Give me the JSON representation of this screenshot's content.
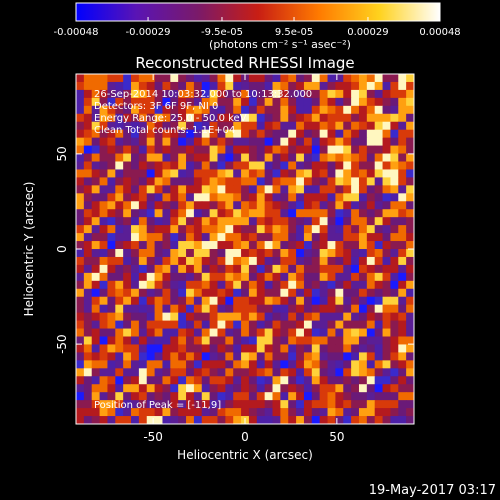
{
  "colorbar": {
    "ticks": [
      "-0.00048",
      "-0.00029",
      "-9.5e-05",
      "9.5e-05",
      "0.00029",
      "0.00048"
    ],
    "tick_values": [
      -0.00048,
      -0.00029,
      -9.5e-05,
      9.5e-05,
      0.00029,
      0.00048
    ],
    "unit_label": "(photons cm⁻² s⁻¹ asec⁻²)",
    "range": [
      -0.00048,
      0.00048
    ],
    "colormap": [
      "#0000ff",
      "#5a14b4",
      "#7a1a6a",
      "#c81e14",
      "#ff7a00",
      "#ffd21e",
      "#ffffff"
    ]
  },
  "chart_data": {
    "type": "heatmap",
    "title": "Reconstructed RHESSI Image",
    "xlabel": "Heliocentric X (arcsec)",
    "ylabel": "Heliocentric Y (arcsec)",
    "x_ticks": [
      "-50",
      "0",
      "50"
    ],
    "y_ticks": [
      "50",
      "0",
      "-50"
    ],
    "xlim": [
      -92,
      92
    ],
    "ylim": [
      -92,
      92
    ],
    "peak_position": [
      -11,
      9
    ],
    "annotations": [
      "26-Sep-2014 10:03:32.000 to 10:13:32.000",
      "Detectors: 3F 6F 9F, NI 0",
      "Energy Range: 25.0 - 50.0 keV",
      "Clean    Total counts: 1.1E+04",
      "Position of Peak = [-11,9]"
    ]
  },
  "footer": {
    "timestamp": "19-May-2017 03:17"
  }
}
